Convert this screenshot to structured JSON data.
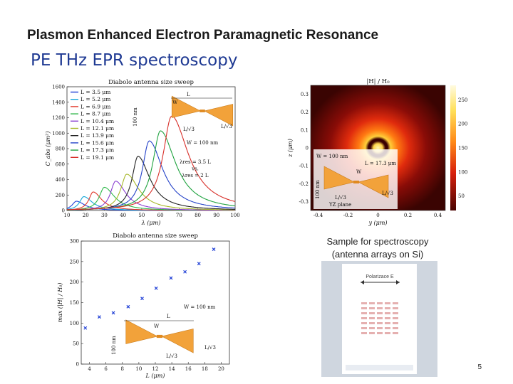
{
  "slide": {
    "title": "Plasmon Enhanced Electron Paramagnetic Resonance",
    "subtitle": "PE THz EPR spectroscopy",
    "page_number": "5"
  },
  "sample": {
    "caption_line1": "Sample for spectroscopy",
    "caption_line2": "(antenna arrays on Si)",
    "polarization_label": "Polarizace E"
  },
  "antenna_labels": {
    "L": "L",
    "W": "W",
    "L3": "L/√3",
    "thick": "100 nm",
    "W100": "W = 100 nm"
  },
  "chart_data": [
    {
      "type": "line",
      "title": "Diabolo antenna size sweep",
      "xlabel": "λ (μm)",
      "ylabel": "C_abs (μm²)",
      "xlim": [
        10,
        100
      ],
      "ylim": [
        0,
        1600
      ],
      "x_ticks": [
        "10",
        "20",
        "30",
        "40",
        "50",
        "60",
        "70",
        "80",
        "90",
        "100"
      ],
      "y_ticks": [
        "0",
        "200",
        "400",
        "600",
        "800",
        "1000",
        "1200",
        "1400",
        "1600"
      ],
      "legend_position": "top-left",
      "annotation": [
        "λres = 3.5 L",
        "vs.",
        "λres = 2 L"
      ],
      "series": [
        {
          "name": "L = 3.5 μm",
          "color": "#1f3fd6",
          "peak_x": 15,
          "peak_y": 120,
          "width": 5
        },
        {
          "name": "L = 5.2 μm",
          "color": "#16a7d8",
          "peak_x": 19,
          "peak_y": 180,
          "width": 5
        },
        {
          "name": "L = 6.9 μm",
          "color": "#e1392c",
          "peak_x": 24,
          "peak_y": 240,
          "width": 5
        },
        {
          "name": "L = 8.7 μm",
          "color": "#2fb84a",
          "peak_x": 30,
          "peak_y": 300,
          "width": 6
        },
        {
          "name": "L = 10.4 μm",
          "color": "#8a3fd1",
          "peak_x": 36,
          "peak_y": 380,
          "width": 6
        },
        {
          "name": "L = 12.1 μm",
          "color": "#a8b82a",
          "peak_x": 42,
          "peak_y": 470,
          "width": 7
        },
        {
          "name": "L = 13.9 μm",
          "color": "#222222",
          "peak_x": 48,
          "peak_y": 700,
          "width": 7
        },
        {
          "name": "L = 15.6 μm",
          "color": "#2442c8",
          "peak_x": 54,
          "peak_y": 900,
          "width": 8
        },
        {
          "name": "L = 17.3 μm",
          "color": "#1fa33f",
          "peak_x": 60,
          "peak_y": 1030,
          "width": 9
        },
        {
          "name": "L = 19.1 μm",
          "color": "#d8302a",
          "peak_x": 66,
          "peak_y": 1220,
          "width": 10
        }
      ]
    },
    {
      "type": "heatmap",
      "title": "|H| / H₀",
      "xlabel": "y (μm)",
      "ylabel": "z (μm)",
      "xlim": [
        -0.45,
        0.45
      ],
      "ylim": [
        -0.35,
        0.35
      ],
      "x_ticks": [
        "-0.4",
        "-0.2",
        "0",
        "0.2",
        "0.4"
      ],
      "y_ticks": [
        "0.3",
        "0.2",
        "0.1",
        "0",
        "-0.1",
        "-0.2",
        "-0.3"
      ],
      "colorbar_ticks": [
        "250",
        "200",
        "150",
        "100",
        "50"
      ],
      "annotations": [
        "W = 100 nm",
        "L = 17.3 μm",
        "W",
        "L/√3",
        "L/√3",
        "100 nm",
        "YZ plane"
      ]
    },
    {
      "type": "scatter",
      "title": "Diabolo antenna size sweep",
      "xlabel": "L (μm)",
      "ylabel": "max (|H| / H₀)",
      "xlim": [
        3,
        21
      ],
      "ylim": [
        0,
        300
      ],
      "x_ticks": [
        "4",
        "6",
        "8",
        "10",
        "12",
        "14",
        "16",
        "18",
        "20"
      ],
      "y_ticks": [
        "0",
        "50",
        "100",
        "150",
        "200",
        "250",
        "300"
      ],
      "x": [
        3.5,
        5.2,
        6.9,
        8.7,
        10.4,
        12.1,
        13.9,
        15.6,
        17.3,
        19.1
      ],
      "y": [
        88,
        115,
        125,
        140,
        160,
        185,
        210,
        225,
        245,
        280
      ]
    }
  ]
}
